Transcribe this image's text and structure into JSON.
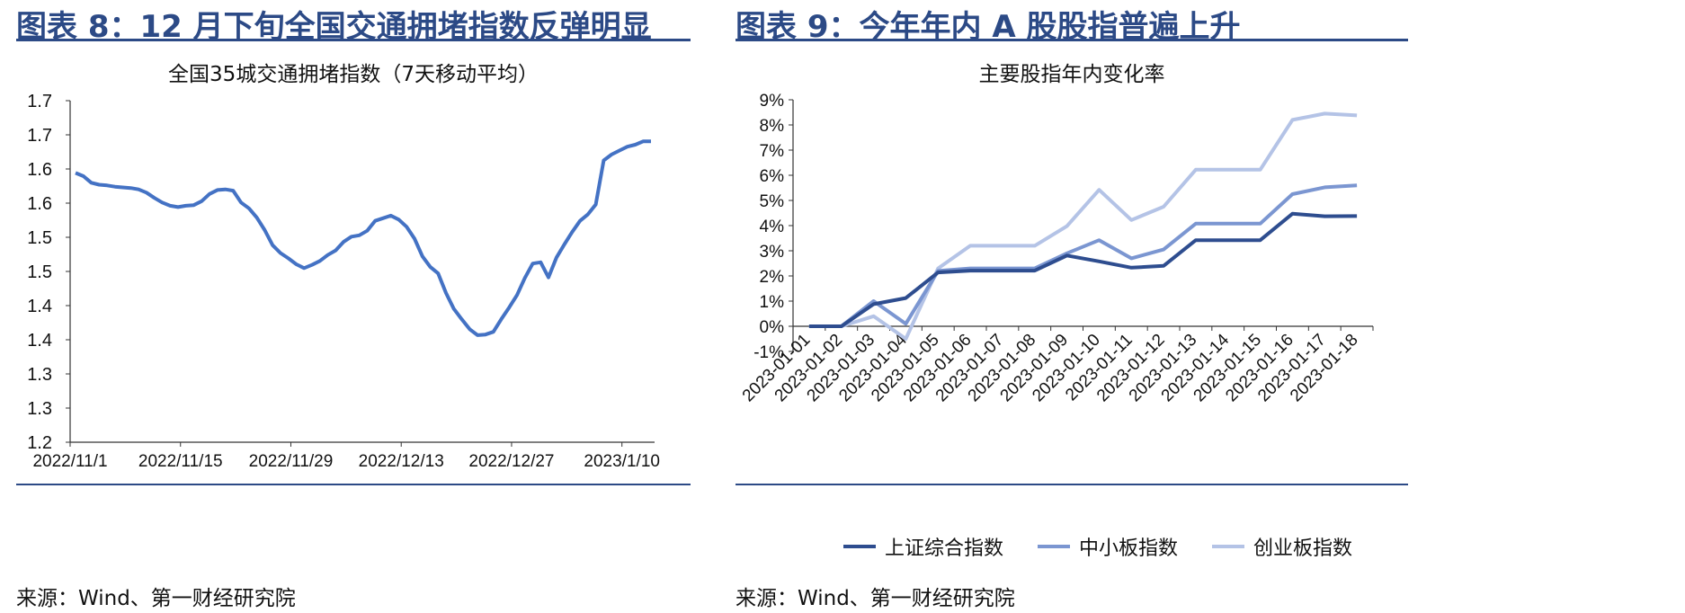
{
  "left": {
    "figure_title": "图表 8：12 月下旬全国交通拥堵指数反弹明显",
    "source": "来源：Wind、第一财经研究院"
  },
  "right": {
    "figure_title": "图表 9：今年年内 A 股股指普遍上升",
    "source": "来源：Wind、第一财经研究院"
  },
  "colors": {
    "title": "#2c4a86",
    "line_left": "#4472c4",
    "s1": "#2e4d8f",
    "s2": "#7b96d1",
    "s3": "#b4c3e6"
  },
  "chart_data": [
    {
      "type": "line",
      "title": "全国35城交通拥堵指数（7天移动平均）",
      "xlabel": "",
      "ylabel": "",
      "x_ticks": [
        "2022/11/1",
        "2022/11/15",
        "2022/11/29",
        "2022/12/13",
        "2022/12/27",
        "2023/1/10"
      ],
      "y_tick_labels": [
        "1.2",
        "1.3",
        "1.3",
        "1.4",
        "1.4",
        "1.5",
        "1.5",
        "1.6",
        "1.6",
        "1.7",
        "1.7"
      ],
      "ylim": [
        1.2,
        1.72
      ],
      "grid": false,
      "series": [
        {
          "values": [
            1.61,
            1.605,
            1.595,
            1.592,
            1.591,
            1.589,
            1.588,
            1.587,
            1.585,
            1.58,
            1.572,
            1.565,
            1.56,
            1.558,
            1.56,
            1.561,
            1.567,
            1.578,
            1.584,
            1.585,
            1.583,
            1.565,
            1.556,
            1.542,
            1.523,
            1.5,
            1.488,
            1.48,
            1.471,
            1.465,
            1.47,
            1.476,
            1.485,
            1.492,
            1.505,
            1.513,
            1.515,
            1.522,
            1.537,
            1.541,
            1.545,
            1.539,
            1.528,
            1.51,
            1.483,
            1.467,
            1.457,
            1.427,
            1.403,
            1.387,
            1.372,
            1.363,
            1.364,
            1.368,
            1.387,
            1.405,
            1.424,
            1.45,
            1.472,
            1.474,
            1.451,
            1.481,
            1.501,
            1.52,
            1.537,
            1.547,
            1.562,
            1.629,
            1.638,
            1.644,
            1.65,
            1.653,
            1.658,
            1.658
          ]
        }
      ]
    },
    {
      "type": "line",
      "title": "主要股指年内变化率",
      "xlabel": "",
      "ylabel": "",
      "categories": [
        "2023-01-01",
        "2023-01-02",
        "2023-01-03",
        "2023-01-04",
        "2023-01-05",
        "2023-01-06",
        "2023-01-07",
        "2023-01-08",
        "2023-01-09",
        "2023-01-10",
        "2023-01-11",
        "2023-01-12",
        "2023-01-13",
        "2023-01-14",
        "2023-01-15",
        "2023-01-16",
        "2023-01-17",
        "2023-01-18"
      ],
      "y_tick_labels": [
        "-1%",
        "0%",
        "1%",
        "2%",
        "3%",
        "4%",
        "5%",
        "6%",
        "7%",
        "8%",
        "9%"
      ],
      "ylim": [
        -1,
        9
      ],
      "grid": false,
      "legend": "bottom",
      "series": [
        {
          "name": "上证综合指数",
          "values": [
            0,
            0,
            0.88,
            1.12,
            2.14,
            2.21,
            2.21,
            2.21,
            2.81,
            2.58,
            2.33,
            2.4,
            3.42,
            3.42,
            3.42,
            4.47,
            4.37,
            4.38
          ]
        },
        {
          "name": "中小板指数",
          "values": [
            0,
            0,
            1.0,
            0.1,
            2.2,
            2.3,
            2.3,
            2.3,
            2.9,
            3.42,
            2.7,
            3.05,
            4.08,
            4.08,
            4.08,
            5.25,
            5.52,
            5.6
          ]
        },
        {
          "name": "创业板指数",
          "values": [
            0,
            0,
            0.4,
            -0.5,
            2.3,
            3.2,
            3.2,
            3.2,
            3.98,
            5.42,
            4.22,
            4.75,
            6.22,
            6.22,
            6.22,
            8.2,
            8.45,
            8.38
          ]
        }
      ]
    }
  ]
}
